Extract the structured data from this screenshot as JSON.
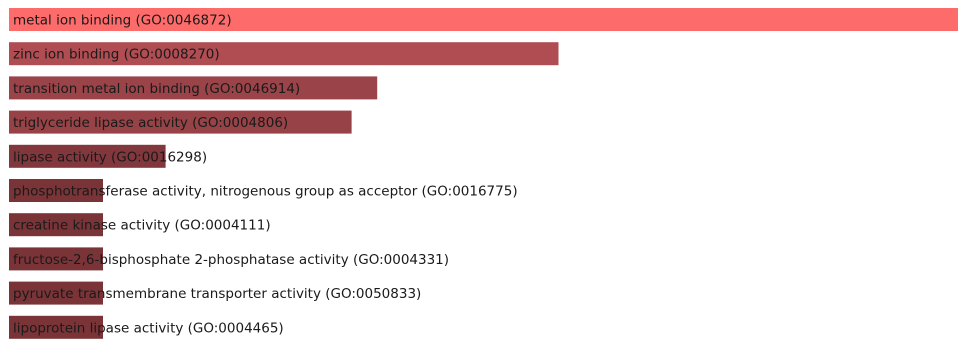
{
  "chart_data": {
    "type": "bar",
    "orientation": "horizontal",
    "categories": [
      "metal ion binding (GO:0046872)",
      "zinc ion binding (GO:0008270)",
      "transition metal ion binding (GO:0046914)",
      "triglyceride lipase activity (GO:0004806)",
      "lipase activity (GO:0016298)",
      "phosphotransferase activity, nitrogenous group as acceptor (GO:0016775)",
      "creatine kinase activity (GO:0004111)",
      "fructose-2,6-bisphosphate 2-phosphatase activity (GO:0004331)",
      "pyruvate transmembrane transporter activity (GO:0050833)",
      "lipoprotein lipase activity (GO:0004465)"
    ],
    "values": [
      1.0,
      0.579,
      0.388,
      0.361,
      0.165,
      0.099,
      0.099,
      0.099,
      0.099,
      0.099
    ],
    "xlim": [
      0,
      1
    ],
    "grid": false,
    "legend": "none",
    "title": "",
    "xlabel": "",
    "ylabel": "",
    "colors": {
      "max": "#fe6b6b",
      "mid": "#b14e53",
      "low": "#893a40",
      "min": "#7a3438"
    }
  }
}
